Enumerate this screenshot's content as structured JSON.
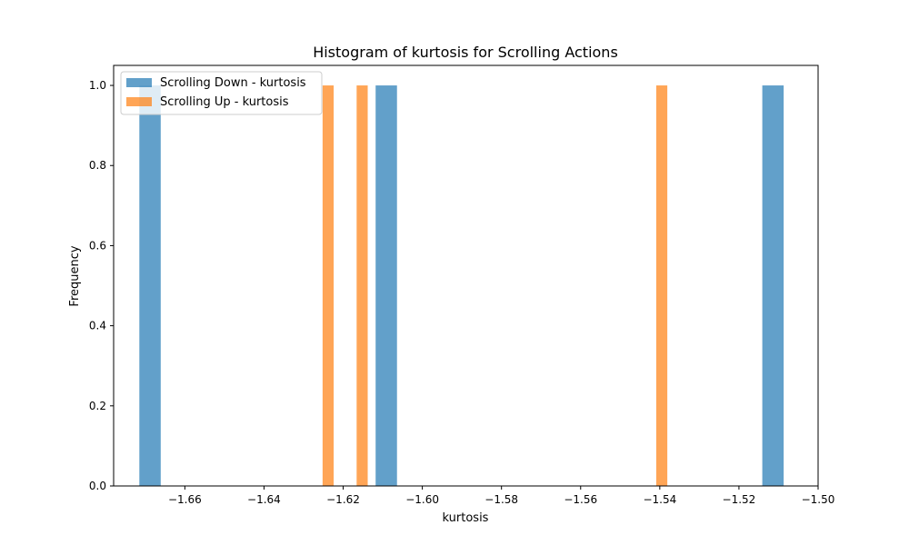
{
  "chart_data": {
    "type": "bar",
    "title": "Histogram of kurtosis for Scrolling Actions",
    "xlabel": "kurtosis",
    "ylabel": "Frequency",
    "xlim": [
      -1.678,
      -1.5
    ],
    "ylim": [
      0,
      1.05
    ],
    "xticks": [
      -1.66,
      -1.64,
      -1.62,
      -1.6,
      -1.58,
      -1.56,
      -1.54,
      -1.52,
      -1.5
    ],
    "xtick_labels": [
      "−1.66",
      "−1.64",
      "−1.62",
      "−1.60",
      "−1.58",
      "−1.56",
      "−1.54",
      "−1.52",
      "−1.50"
    ],
    "yticks": [
      0.0,
      0.2,
      0.4,
      0.6,
      0.8,
      1.0
    ],
    "ytick_labels": [
      "0.0",
      "0.2",
      "0.4",
      "0.6",
      "0.8",
      "1.0"
    ],
    "grid": false,
    "legend_position": "top-left",
    "series": [
      {
        "name": "Scrolling Down - kurtosis",
        "color": "#1f77b4",
        "opacity": 0.7,
        "bins": [
          {
            "x0": -1.6715,
            "x1": -1.6661,
            "value": 1
          },
          {
            "x0": -1.6118,
            "x1": -1.6064,
            "value": 1
          },
          {
            "x0": -1.5141,
            "x1": -1.5087,
            "value": 1
          }
        ]
      },
      {
        "name": "Scrolling Up - kurtosis",
        "color": "#ff7f0e",
        "opacity": 0.7,
        "bins": [
          {
            "x0": -1.6252,
            "x1": -1.6224,
            "value": 1
          },
          {
            "x0": -1.6166,
            "x1": -1.6138,
            "value": 1
          },
          {
            "x0": -1.5409,
            "x1": -1.5381,
            "value": 1
          }
        ]
      }
    ]
  }
}
